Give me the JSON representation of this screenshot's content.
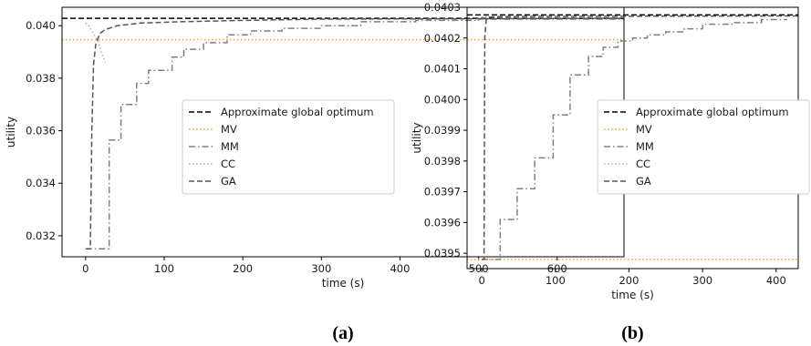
{
  "chart_data": [
    {
      "panel_label": "(a)",
      "type": "line",
      "xlabel": "time (s)",
      "ylabel": "utility",
      "xlim": [
        -30,
        685
      ],
      "ylim": [
        0.0312,
        0.0407
      ],
      "xticks": [
        0,
        100,
        200,
        300,
        400,
        500,
        600
      ],
      "yticks": [
        0.032,
        0.034,
        0.036,
        0.038,
        0.04
      ],
      "ytick_decimals": 3,
      "legend": {
        "placement": "center-right"
      },
      "series": [
        {
          "name": "Approximate global optimum",
          "style": "dashed",
          "color": "#000000",
          "step": false,
          "points": [
            [
              -30,
              0.04028
            ],
            [
              685,
              0.04028
            ]
          ]
        },
        {
          "name": "MV",
          "style": "dotted",
          "color": "#f5a623",
          "step": false,
          "points": [
            [
              -30,
              0.03947
            ],
            [
              685,
              0.03947
            ]
          ]
        },
        {
          "name": "MM",
          "style": "dashdot",
          "color": "#7f7f7f",
          "step": true,
          "points": [
            [
              0,
              0.0315
            ],
            [
              30,
              0.0315
            ],
            [
              30,
              0.03565
            ],
            [
              45,
              0.03565
            ],
            [
              45,
              0.037
            ],
            [
              65,
              0.037
            ],
            [
              65,
              0.0378
            ],
            [
              80,
              0.0378
            ],
            [
              80,
              0.0383
            ],
            [
              110,
              0.0383
            ],
            [
              110,
              0.0388
            ],
            [
              125,
              0.0388
            ],
            [
              125,
              0.0391
            ],
            [
              150,
              0.0391
            ],
            [
              150,
              0.03935
            ],
            [
              180,
              0.03935
            ],
            [
              180,
              0.03965
            ],
            [
              210,
              0.03965
            ],
            [
              210,
              0.0398
            ],
            [
              250,
              0.0398
            ],
            [
              250,
              0.0399
            ],
            [
              300,
              0.0399
            ],
            [
              300,
              0.04
            ],
            [
              350,
              0.04
            ],
            [
              350,
              0.04015
            ],
            [
              420,
              0.04015
            ],
            [
              420,
              0.0402
            ],
            [
              500,
              0.0402
            ],
            [
              500,
              0.04025
            ],
            [
              685,
              0.04025
            ]
          ]
        },
        {
          "name": "CC",
          "style": "dotted",
          "color": "#b5b5b5",
          "step": false,
          "points": [
            [
              0,
              0.0401
            ],
            [
              4,
              0.04
            ],
            [
              8,
              0.0398
            ],
            [
              12,
              0.0396
            ],
            [
              16,
              0.0394
            ],
            [
              20,
              0.039
            ],
            [
              25,
              0.0386
            ]
          ]
        },
        {
          "name": "GA",
          "style": "dashed",
          "color": "#555555",
          "step": false,
          "points": [
            [
              0,
              0.0315
            ],
            [
              6,
              0.0315
            ],
            [
              8,
              0.036
            ],
            [
              10,
              0.0385
            ],
            [
              13,
              0.0393
            ],
            [
              18,
              0.0397
            ],
            [
              25,
              0.03985
            ],
            [
              40,
              0.04
            ],
            [
              70,
              0.0401
            ],
            [
              120,
              0.04015
            ],
            [
              200,
              0.0402
            ],
            [
              300,
              0.04025
            ],
            [
              685,
              0.04028
            ]
          ]
        }
      ]
    },
    {
      "panel_label": "(b)",
      "type": "line",
      "xlabel": "time (s)",
      "ylabel": "utility",
      "xlim": [
        -20,
        430
      ],
      "ylim": [
        0.03945,
        0.0403
      ],
      "xticks": [
        0,
        100,
        200,
        300,
        400
      ],
      "yticks": [
        0.0395,
        0.0396,
        0.0397,
        0.0398,
        0.0399,
        0.04,
        0.0401,
        0.0402,
        0.0403
      ],
      "ytick_decimals": 4,
      "legend": {
        "placement": "center-right"
      },
      "series": [
        {
          "name": "Approximate global optimum",
          "style": "dashed",
          "color": "#000000",
          "step": false,
          "points": [
            [
              -20,
              0.040275
            ],
            [
              430,
              0.040275
            ]
          ]
        },
        {
          "name": "MV",
          "style": "dotted",
          "color": "#f5a623",
          "step": false,
          "points": [
            [
              -20,
              0.03948
            ],
            [
              430,
              0.03948
            ]
          ]
        },
        {
          "name": "MM",
          "style": "dashdot",
          "color": "#7f7f7f",
          "step": true,
          "points": [
            [
              0,
              0.03948
            ],
            [
              25,
              0.03948
            ],
            [
              25,
              0.03961
            ],
            [
              48,
              0.03961
            ],
            [
              48,
              0.03971
            ],
            [
              72,
              0.03971
            ],
            [
              72,
              0.03981
            ],
            [
              97,
              0.03981
            ],
            [
              97,
              0.03995
            ],
            [
              120,
              0.03995
            ],
            [
              120,
              0.04008
            ],
            [
              145,
              0.04008
            ],
            [
              145,
              0.04014
            ],
            [
              165,
              0.04014
            ],
            [
              165,
              0.04017
            ],
            [
              185,
              0.04017
            ],
            [
              185,
              0.04019
            ],
            [
              205,
              0.04019
            ],
            [
              205,
              0.0402
            ],
            [
              225,
              0.0402
            ],
            [
              225,
              0.04021
            ],
            [
              250,
              0.04021
            ],
            [
              250,
              0.04022
            ],
            [
              275,
              0.04022
            ],
            [
              275,
              0.04023
            ],
            [
              300,
              0.04023
            ],
            [
              300,
              0.040245
            ],
            [
              340,
              0.040245
            ],
            [
              340,
              0.04025
            ],
            [
              380,
              0.04025
            ],
            [
              380,
              0.04026
            ],
            [
              415,
              0.04026
            ]
          ]
        },
        {
          "name": "CC",
          "style": "dotted",
          "color": "#b5b5b5",
          "step": false,
          "points": [
            [
              0,
              0.04027
            ],
            [
              8,
              0.04027
            ]
          ]
        },
        {
          "name": "GA",
          "style": "dashed",
          "color": "#555555",
          "step": false,
          "points": [
            [
              0,
              0.03948
            ],
            [
              3,
              0.03948
            ],
            [
              4,
              0.0402
            ],
            [
              6,
              0.04026
            ],
            [
              10,
              0.040268
            ],
            [
              30,
              0.04027
            ],
            [
              430,
              0.040272
            ]
          ]
        }
      ]
    }
  ]
}
